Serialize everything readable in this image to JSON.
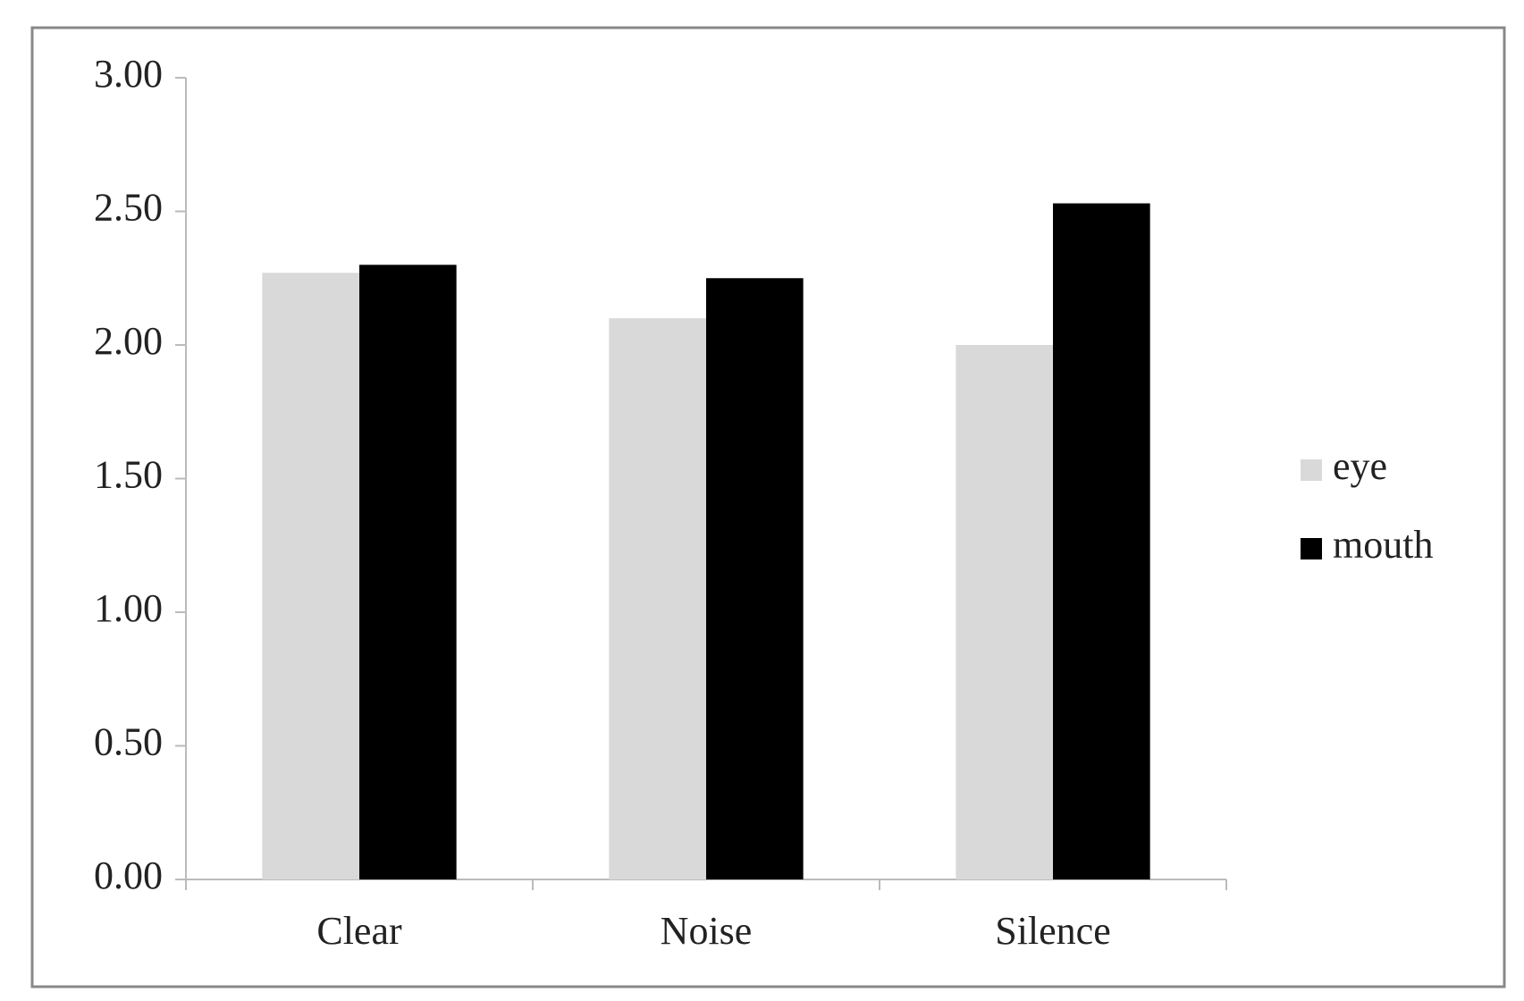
{
  "chart_data": {
    "type": "bar",
    "categories": [
      "Clear",
      "Noise",
      "Silence"
    ],
    "series": [
      {
        "name": "eye",
        "color": "#d9d9d9",
        "values": [
          2.27,
          2.1,
          2.0
        ]
      },
      {
        "name": "mouth",
        "color": "#000000",
        "values": [
          2.3,
          2.25,
          2.53
        ]
      }
    ],
    "ylim": [
      0,
      3
    ],
    "yticks": [
      {
        "value": 0,
        "label": "0.00"
      },
      {
        "value": 0.5,
        "label": "0.50"
      },
      {
        "value": 1,
        "label": "1.00"
      },
      {
        "value": 1.5,
        "label": "1.50"
      },
      {
        "value": 2,
        "label": "2.00"
      },
      {
        "value": 2.5,
        "label": "2.50"
      },
      {
        "value": 3,
        "label": "3.00"
      }
    ],
    "grid": false,
    "legend": "right"
  }
}
